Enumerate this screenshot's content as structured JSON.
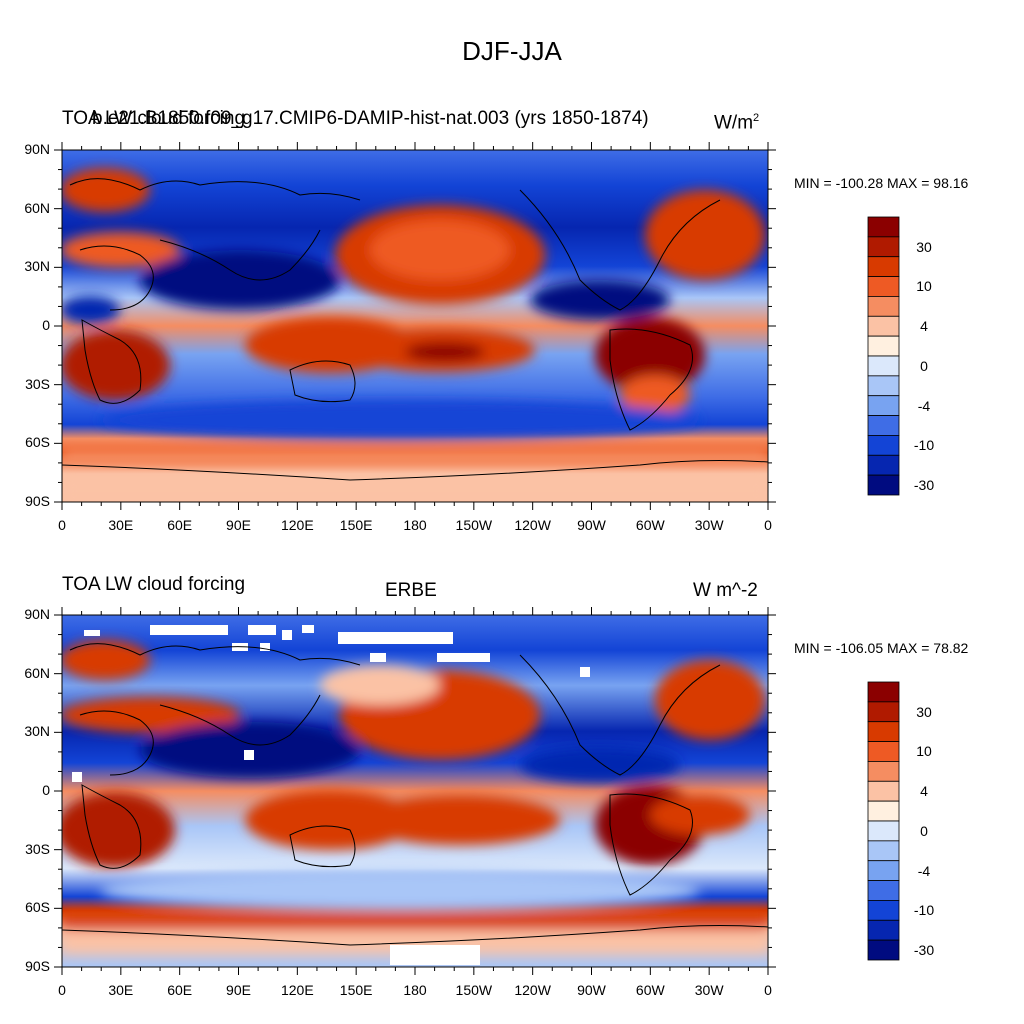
{
  "title": "DJF-JJA",
  "panels": [
    {
      "left_title": "TOA LW cloud forcing",
      "center_title": "b.e21.B1850.f09_g17.CMIP6-DAMIP-hist-nat.003 (yrs 1850-1874)",
      "right_title": "W/m",
      "right_title_sup": "2",
      "min_max": "MIN = -100.28 MAX =  98.16"
    },
    {
      "left_title": "TOA LW cloud forcing",
      "center_title": "ERBE",
      "right_title": "W m^-2",
      "right_title_sup": "",
      "min_max": "MIN = -106.05 MAX =  78.82"
    }
  ],
  "lat_ticks": [
    "90N",
    "60N",
    "30N",
    "0",
    "30S",
    "60S",
    "90S"
  ],
  "lon_ticks": [
    "0",
    "30E",
    "60E",
    "90E",
    "120E",
    "150E",
    "180",
    "150W",
    "120W",
    "90W",
    "60W",
    "30W",
    "0"
  ],
  "colorbar": {
    "colors": [
      "#8b0000",
      "#b01a00",
      "#d83a00",
      "#ee5a24",
      "#f58d61",
      "#fbc2a5",
      "#fff0e0",
      "#dbe8fb",
      "#a9c6f7",
      "#78a3f1",
      "#3f6de6",
      "#1344d6",
      "#0626b0",
      "#000b80"
    ],
    "labels": [
      "30",
      "10",
      "4",
      "0",
      "-4",
      "-10",
      "-30"
    ]
  },
  "colors": {
    "land_outline": "#000000",
    "missing": "#ffffff"
  }
}
